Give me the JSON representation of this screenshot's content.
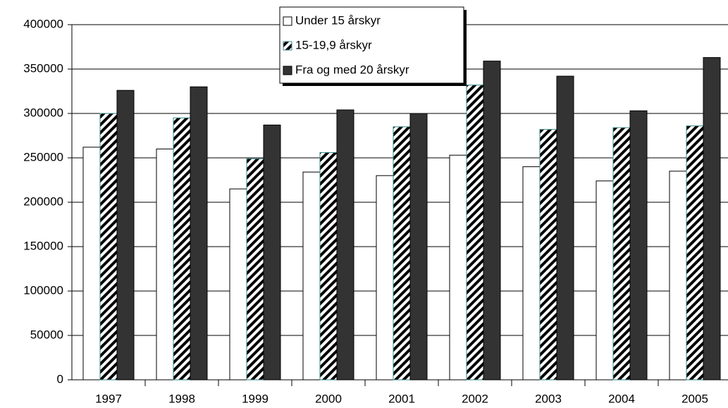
{
  "chart_data": {
    "type": "bar",
    "categories": [
      "1997",
      "1998",
      "1999",
      "2000",
      "2001",
      "2002",
      "2003",
      "2004",
      "2005"
    ],
    "series": [
      {
        "name": "Under 15 årskyr",
        "color": "#ffffff",
        "values": [
          262000,
          260000,
          215000,
          234000,
          230000,
          253000,
          240000,
          224000,
          235000
        ]
      },
      {
        "name": "15-19,9 årskyr",
        "color": "#000000",
        "hatch": true,
        "values": [
          300000,
          295000,
          249000,
          256000,
          285000,
          332000,
          282000,
          284000,
          286000
        ]
      },
      {
        "name": "Fra og med 20 årskyr",
        "color": "#333333",
        "values": [
          326000,
          330000,
          287000,
          304000,
          300000,
          359000,
          342000,
          303000,
          363000
        ]
      }
    ],
    "ylim": [
      0,
      400000
    ],
    "yticks": [
      0,
      50000,
      100000,
      150000,
      200000,
      250000,
      300000,
      350000,
      400000
    ],
    "grid": true,
    "legend": "top"
  }
}
